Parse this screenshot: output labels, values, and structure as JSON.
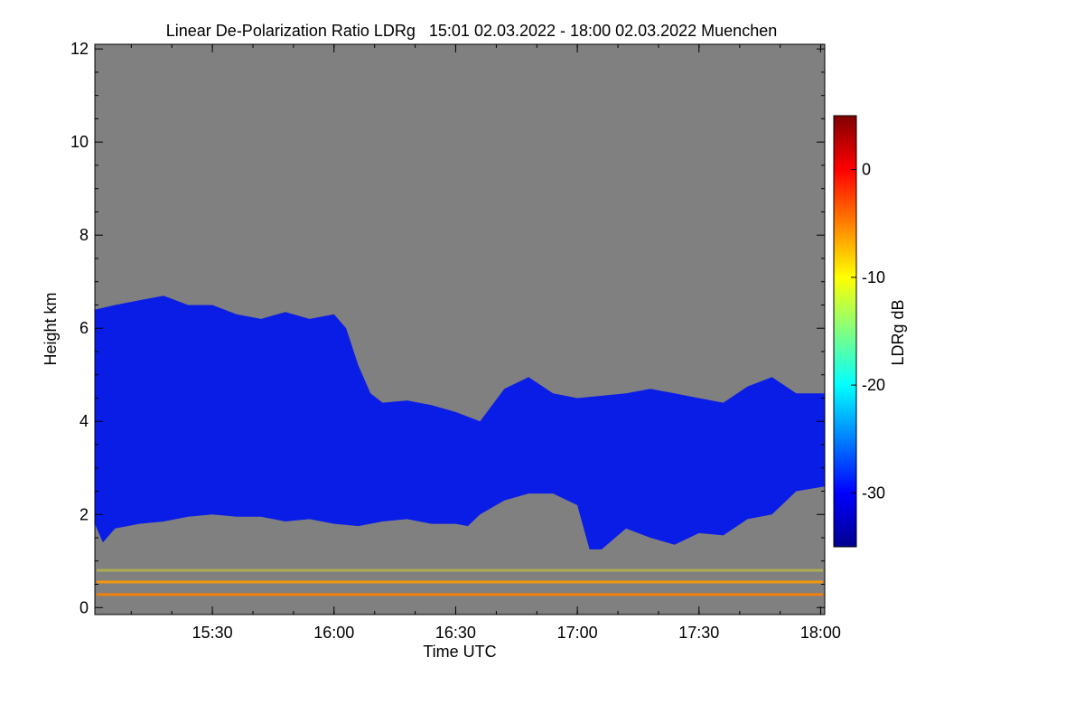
{
  "chart_data": {
    "type": "heatmap",
    "title": "Linear De-Polarization Ratio LDRg   15:01 02.03.2022 - 18:00 02.03.2022 Muenchen",
    "xlabel": "Time UTC",
    "ylabel": "Height km",
    "x_range_hours": [
      15.017,
      18.0
    ],
    "xlim": [
      15.017,
      18.017
    ],
    "x_ticks": [
      {
        "label": "15:30",
        "value": 15.5
      },
      {
        "label": "16:00",
        "value": 16.0
      },
      {
        "label": "16:30",
        "value": 16.5
      },
      {
        "label": "17:00",
        "value": 17.0
      },
      {
        "label": "17:30",
        "value": 17.5
      },
      {
        "label": "18:00",
        "value": 18.0
      }
    ],
    "x_minor_step": 0.1667,
    "ylim": [
      -0.15,
      12.1
    ],
    "y_ticks": [
      {
        "label": "0",
        "value": 0
      },
      {
        "label": "2",
        "value": 2
      },
      {
        "label": "4",
        "value": 4
      },
      {
        "label": "6",
        "value": 6
      },
      {
        "label": "8",
        "value": 8
      },
      {
        "label": "10",
        "value": 10
      },
      {
        "label": "12",
        "value": 12
      }
    ],
    "y_minor_step": 0.5,
    "background_color": "#808080",
    "colorbar": {
      "label": "LDRg dB",
      "range": [
        -35,
        5
      ],
      "ticks": [
        {
          "label": "0",
          "value": 0
        },
        {
          "label": "-10",
          "value": -10
        },
        {
          "label": "-20",
          "value": -20
        },
        {
          "label": "-30",
          "value": -30
        }
      ],
      "colors": [
        "#00008f",
        "#0000ff",
        "#0080ff",
        "#00ffff",
        "#80ff80",
        "#ffff00",
        "#ff8000",
        "#ff0000",
        "#800000"
      ]
    },
    "cloud_layer": {
      "ldr_db": -31,
      "color": "#0a1de6",
      "top_km": [
        [
          15.017,
          6.4
        ],
        [
          15.1,
          6.5
        ],
        [
          15.2,
          6.6
        ],
        [
          15.3,
          6.7
        ],
        [
          15.4,
          6.5
        ],
        [
          15.5,
          6.5
        ],
        [
          15.6,
          6.3
        ],
        [
          15.7,
          6.2
        ],
        [
          15.8,
          6.35
        ],
        [
          15.9,
          6.2
        ],
        [
          16.0,
          6.3
        ],
        [
          16.05,
          6.0
        ],
        [
          16.1,
          5.2
        ],
        [
          16.15,
          4.6
        ],
        [
          16.2,
          4.4
        ],
        [
          16.3,
          4.45
        ],
        [
          16.4,
          4.35
        ],
        [
          16.5,
          4.2
        ],
        [
          16.6,
          4.0
        ],
        [
          16.7,
          4.7
        ],
        [
          16.8,
          4.95
        ],
        [
          16.9,
          4.6
        ],
        [
          17.0,
          4.5
        ],
        [
          17.1,
          4.55
        ],
        [
          17.2,
          4.6
        ],
        [
          17.3,
          4.7
        ],
        [
          17.4,
          4.6
        ],
        [
          17.5,
          4.5
        ],
        [
          17.6,
          4.4
        ],
        [
          17.7,
          4.75
        ],
        [
          17.8,
          4.95
        ],
        [
          17.9,
          4.6
        ],
        [
          18.017,
          4.6
        ]
      ],
      "base_km": [
        [
          15.017,
          1.8
        ],
        [
          15.05,
          1.4
        ],
        [
          15.1,
          1.7
        ],
        [
          15.2,
          1.8
        ],
        [
          15.3,
          1.85
        ],
        [
          15.4,
          1.95
        ],
        [
          15.5,
          2.0
        ],
        [
          15.6,
          1.95
        ],
        [
          15.7,
          1.95
        ],
        [
          15.8,
          1.85
        ],
        [
          15.9,
          1.9
        ],
        [
          16.0,
          1.8
        ],
        [
          16.1,
          1.75
        ],
        [
          16.2,
          1.85
        ],
        [
          16.3,
          1.9
        ],
        [
          16.4,
          1.8
        ],
        [
          16.5,
          1.8
        ],
        [
          16.55,
          1.75
        ],
        [
          16.6,
          2.0
        ],
        [
          16.7,
          2.3
        ],
        [
          16.8,
          2.45
        ],
        [
          16.9,
          2.45
        ],
        [
          17.0,
          2.2
        ],
        [
          17.05,
          1.25
        ],
        [
          17.1,
          1.25
        ],
        [
          17.2,
          1.7
        ],
        [
          17.3,
          1.5
        ],
        [
          17.4,
          1.35
        ],
        [
          17.5,
          1.6
        ],
        [
          17.6,
          1.55
        ],
        [
          17.7,
          1.9
        ],
        [
          17.8,
          2.0
        ],
        [
          17.9,
          2.5
        ],
        [
          18.017,
          2.6
        ]
      ]
    },
    "boundary_layer_bands": [
      {
        "height_km": 0.28,
        "ldr_db": -3,
        "color": "#ff8000"
      },
      {
        "height_km": 0.55,
        "ldr_db": -5,
        "color": "#ff9900"
      },
      {
        "height_km": 0.8,
        "ldr_db": -10,
        "color": "#ffff00"
      }
    ]
  }
}
